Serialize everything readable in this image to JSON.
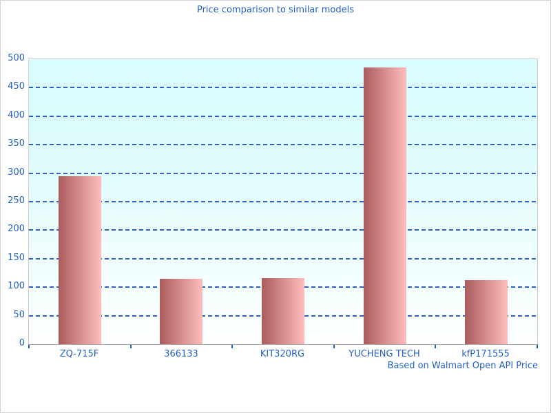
{
  "chart_data": {
    "type": "bar",
    "title": "Price comparison to similar models",
    "categories": [
      "ZQ-715F",
      "366133",
      "KIT320RG",
      "YUCHENG TECH",
      "kfP171555"
    ],
    "values": [
      295,
      115,
      116,
      486,
      112
    ],
    "ylim": [
      0,
      500
    ],
    "yticks": [
      0,
      50,
      100,
      150,
      200,
      250,
      300,
      350,
      400,
      450,
      500
    ],
    "grid": "horizontal-dashed",
    "legend": "none",
    "footer": "Based on Walmart Open API Price",
    "colors": {
      "text": "#2361c6",
      "gridline": "#3060c4",
      "bar_gradient_left": "#ab5c5c",
      "bar_gradient_right": "#ffbdbd",
      "plot_bg_top": "#d9fcfc",
      "plot_bg_bottom": "#feffff",
      "plot_border": "#cccccc",
      "axis_line": "#a8a8a8",
      "frame_border": "#d6d0d0"
    }
  }
}
